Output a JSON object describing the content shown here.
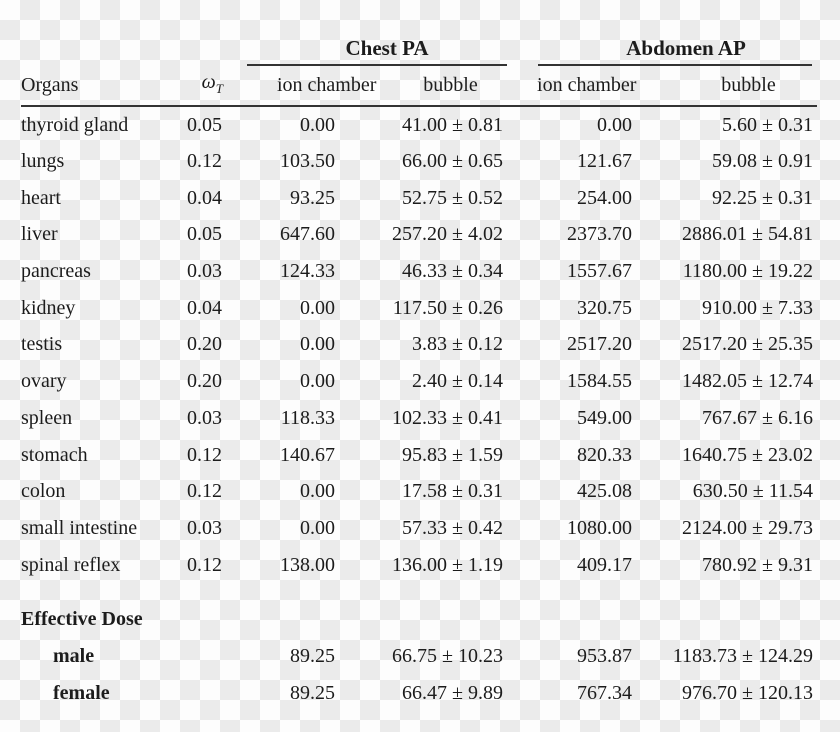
{
  "colors": {
    "text": "#1c1c1c",
    "rule": "#333333",
    "checker_light": "#fdfdfd",
    "checker_dark": "#ebebeb"
  },
  "table": {
    "group_headers": [
      {
        "label": "Chest PA"
      },
      {
        "label": "Abdomen AP"
      }
    ],
    "column_headers": {
      "organs": "Organs",
      "weight_symbol": "ω",
      "weight_subscript": "T",
      "chest_ion": "ion chamber",
      "chest_bubble": "bubble",
      "abdomen_ion": "ion chamber",
      "abdomen_bubble": "bubble"
    },
    "rows": [
      {
        "organ": "thyroid gland",
        "wt": "0.05",
        "chest_ion": "0.00",
        "chest_bubble": "41.00 ± 0.81",
        "abdomen_ion": "0.00",
        "abdomen_bubble": "5.60 ± 0.31"
      },
      {
        "organ": "lungs",
        "wt": "0.12",
        "chest_ion": "103.50",
        "chest_bubble": "66.00 ± 0.65",
        "abdomen_ion": "121.67",
        "abdomen_bubble": "59.08 ± 0.91"
      },
      {
        "organ": "heart",
        "wt": "0.04",
        "chest_ion": "93.25",
        "chest_bubble": "52.75 ± 0.52",
        "abdomen_ion": "254.00",
        "abdomen_bubble": "92.25 ± 0.31"
      },
      {
        "organ": "liver",
        "wt": "0.05",
        "chest_ion": "647.60",
        "chest_bubble": "257.20 ± 4.02",
        "abdomen_ion": "2373.70",
        "abdomen_bubble": "2886.01 ± 54.81"
      },
      {
        "organ": "pancreas",
        "wt": "0.03",
        "chest_ion": "124.33",
        "chest_bubble": "46.33 ± 0.34",
        "abdomen_ion": "1557.67",
        "abdomen_bubble": "1180.00 ± 19.22"
      },
      {
        "organ": "kidney",
        "wt": "0.04",
        "chest_ion": "0.00",
        "chest_bubble": "117.50 ± 0.26",
        "abdomen_ion": "320.75",
        "abdomen_bubble": "910.00 ± 7.33"
      },
      {
        "organ": "testis",
        "wt": "0.20",
        "chest_ion": "0.00",
        "chest_bubble": "3.83 ± 0.12",
        "abdomen_ion": "2517.20",
        "abdomen_bubble": "2517.20 ± 25.35"
      },
      {
        "organ": "ovary",
        "wt": "0.20",
        "chest_ion": "0.00",
        "chest_bubble": "2.40 ± 0.14",
        "abdomen_ion": "1584.55",
        "abdomen_bubble": "1482.05 ± 12.74"
      },
      {
        "organ": "spleen",
        "wt": "0.03",
        "chest_ion": "118.33",
        "chest_bubble": "102.33 ± 0.41",
        "abdomen_ion": "549.00",
        "abdomen_bubble": "767.67 ± 6.16"
      },
      {
        "organ": "stomach",
        "wt": "0.12",
        "chest_ion": "140.67",
        "chest_bubble": "95.83 ± 1.59",
        "abdomen_ion": "820.33",
        "abdomen_bubble": "1640.75 ± 23.02"
      },
      {
        "organ": "colon",
        "wt": "0.12",
        "chest_ion": "0.00",
        "chest_bubble": "17.58 ± 0.31",
        "abdomen_ion": "425.08",
        "abdomen_bubble": "630.50 ± 11.54"
      },
      {
        "organ": "small intestine",
        "wt": "0.03",
        "chest_ion": "0.00",
        "chest_bubble": "57.33 ± 0.42",
        "abdomen_ion": "1080.00",
        "abdomen_bubble": "2124.00 ± 29.73"
      },
      {
        "organ": "spinal reflex",
        "wt": "0.12",
        "chest_ion": "138.00",
        "chest_bubble": "136.00 ± 1.19",
        "abdomen_ion": "409.17",
        "abdomen_bubble": "780.92 ± 9.31"
      }
    ],
    "effective_dose": {
      "label": "Effective Dose",
      "rows": [
        {
          "label": "male",
          "chest_ion": "89.25",
          "chest_bubble": "66.75 ± 10.23",
          "abdomen_ion": "953.87",
          "abdomen_bubble": "1183.73 ± 124.29"
        },
        {
          "label": "female",
          "chest_ion": "89.25",
          "chest_bubble": "66.47 ± 9.89",
          "abdomen_ion": "767.34",
          "abdomen_bubble": "976.70 ± 120.13"
        }
      ]
    }
  }
}
